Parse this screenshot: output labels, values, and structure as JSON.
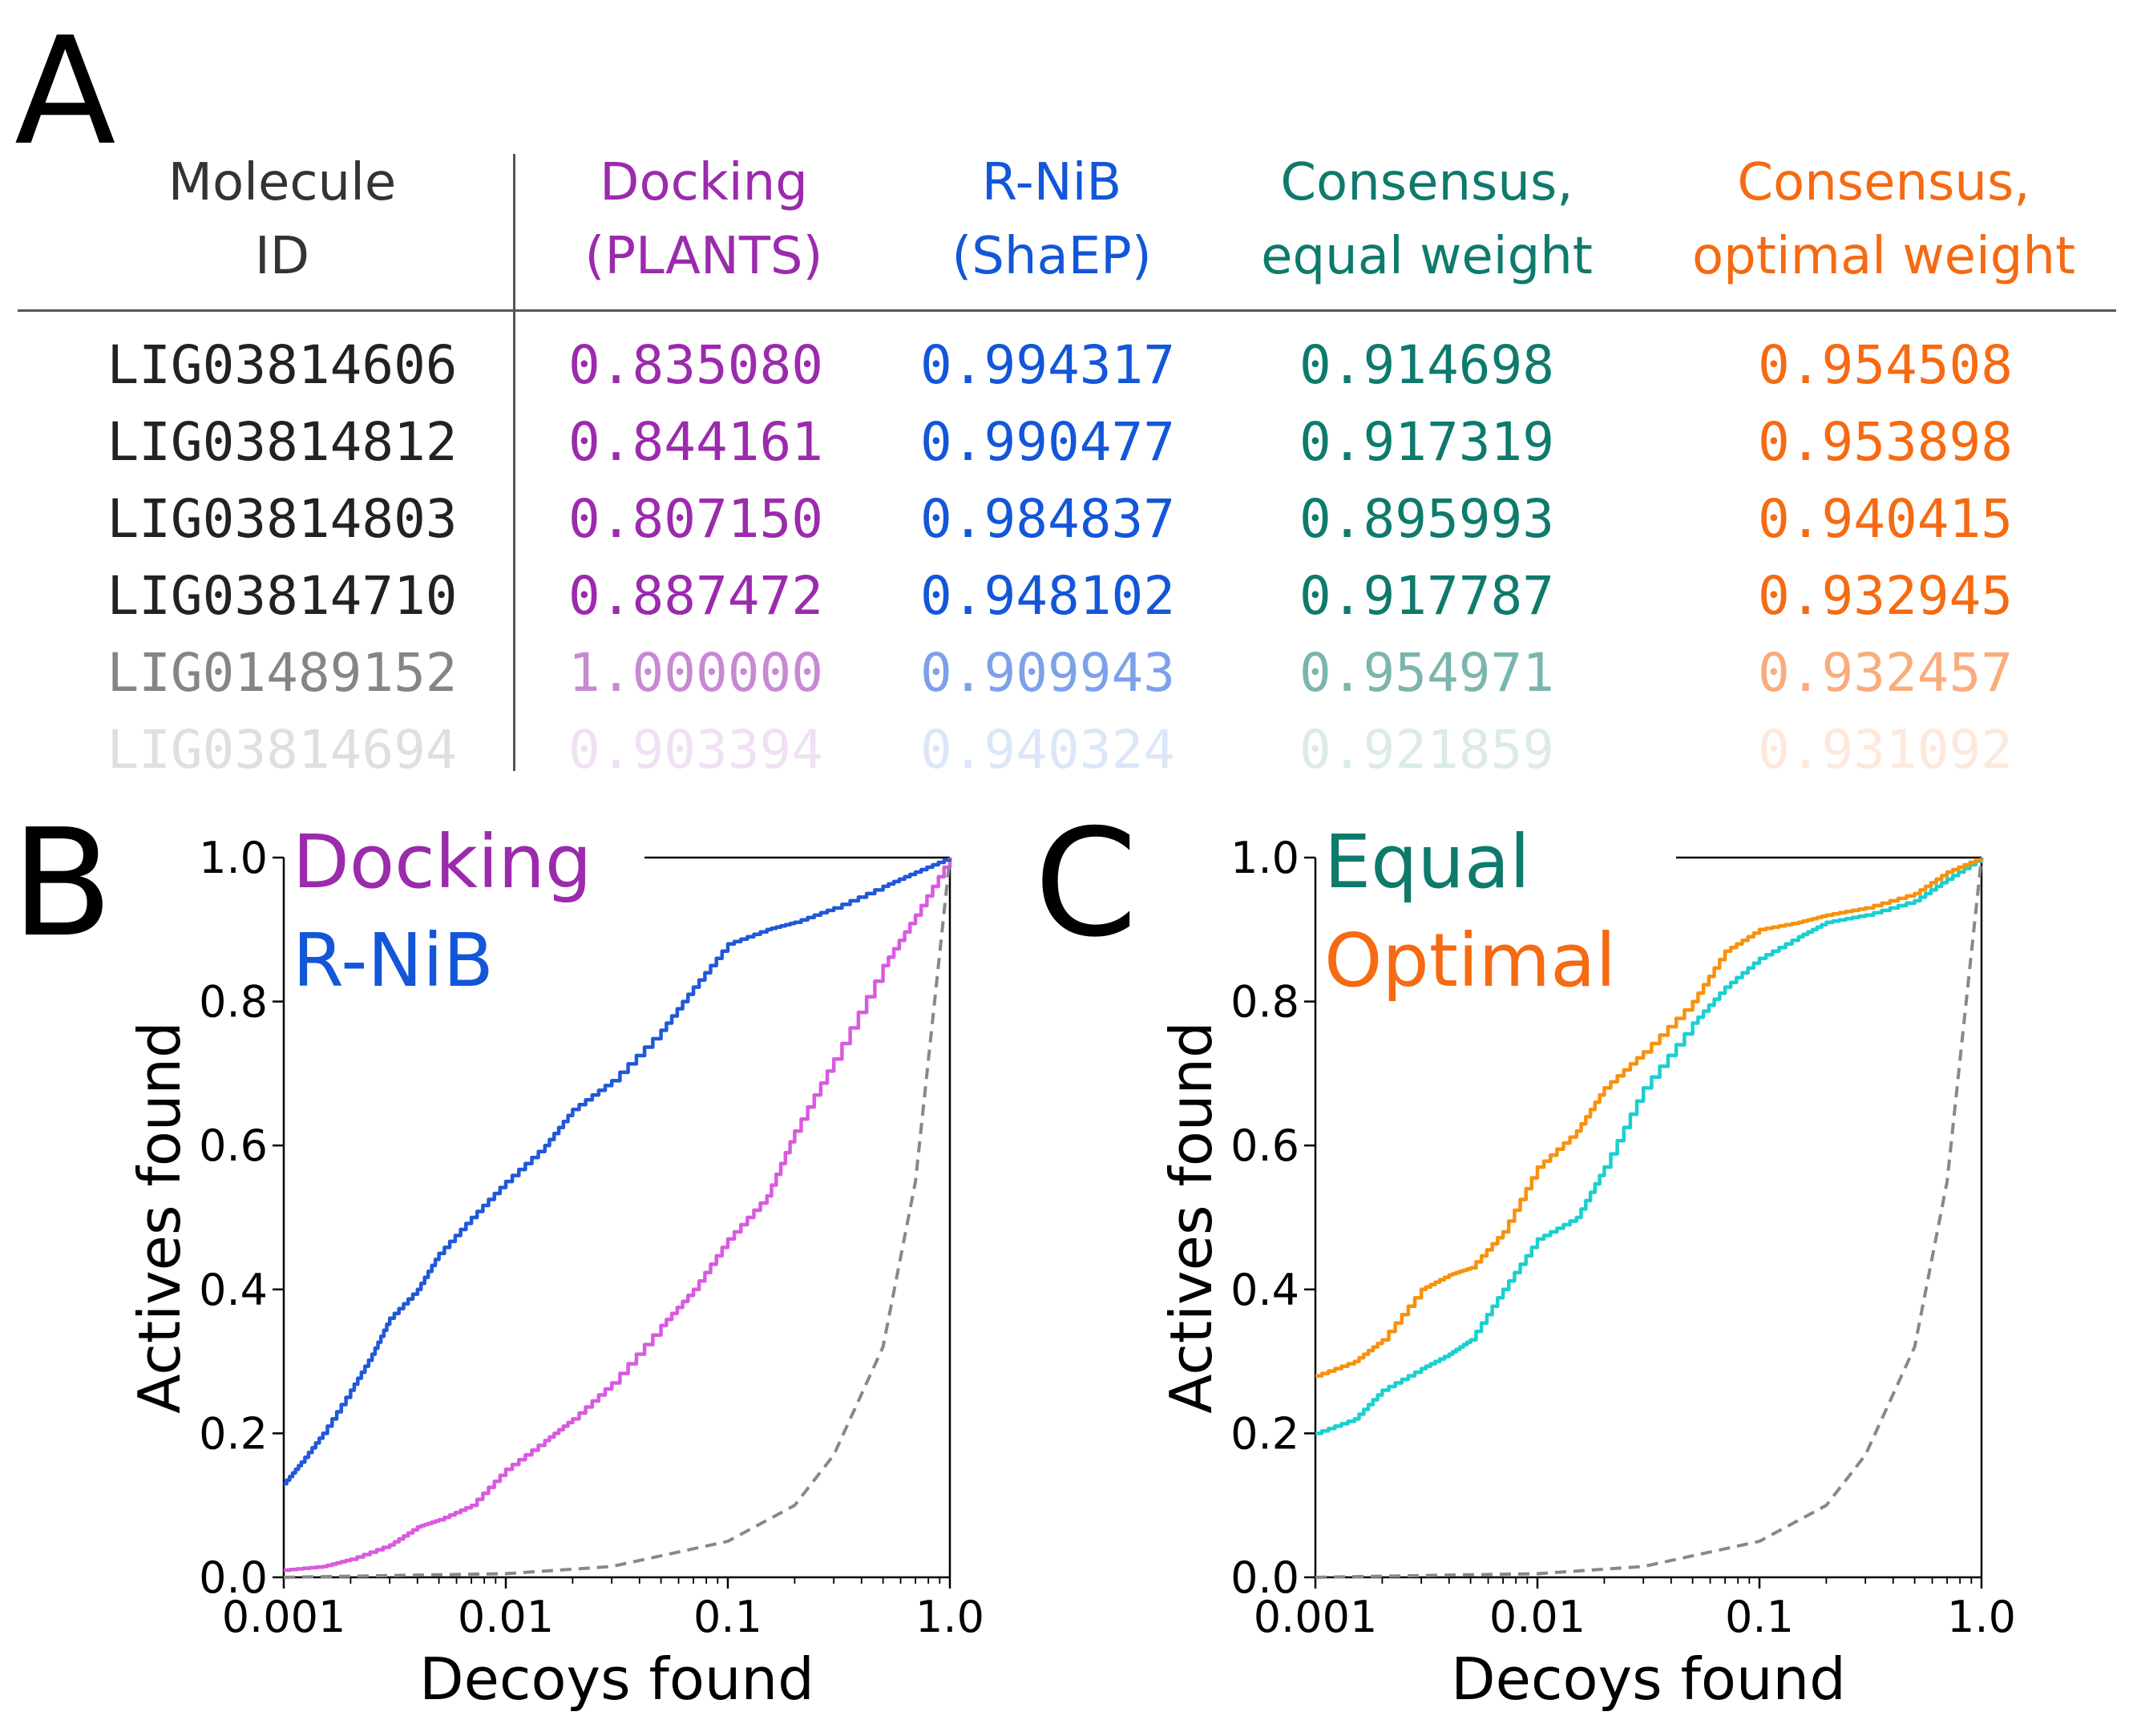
{
  "panels": {
    "a": "A",
    "b": "B",
    "c": "C"
  },
  "colors": {
    "docking": "#9b2aad",
    "rnib": "#1356d8",
    "equal": "#0e7a6c",
    "optimal": "#f56a12",
    "docking_line": "#d95adf",
    "rnib_line": "#2058d8",
    "equal_line": "#1ad0cf",
    "optimal_line": "#f7920f",
    "random_line": "#888888"
  },
  "table": {
    "headers": [
      {
        "key": "id",
        "line1": "Molecule",
        "line2": "ID"
      },
      {
        "key": "docking",
        "line1": "Docking",
        "line2": "(PLANTS)"
      },
      {
        "key": "rnib",
        "line1": "R-NiB",
        "line2": "(ShaEP)"
      },
      {
        "key": "equal",
        "line1": "Consensus,",
        "line2": "equal weight"
      },
      {
        "key": "optimal",
        "line1": "Consensus,",
        "line2": "optimal weight"
      }
    ],
    "rows": [
      {
        "id": "LIG03814606",
        "docking": "0.835080",
        "rnib": "0.994317",
        "equal": "0.914698",
        "optimal": "0.954508"
      },
      {
        "id": "LIG03814812",
        "docking": "0.844161",
        "rnib": "0.990477",
        "equal": "0.917319",
        "optimal": "0.953898"
      },
      {
        "id": "LIG03814803",
        "docking": "0.807150",
        "rnib": "0.984837",
        "equal": "0.895993",
        "optimal": "0.940415"
      },
      {
        "id": "LIG03814710",
        "docking": "0.887472",
        "rnib": "0.948102",
        "equal": "0.917787",
        "optimal": "0.932945"
      },
      {
        "id": "LIG01489152",
        "docking": "1.000000",
        "rnib": "0.909943",
        "equal": "0.954971",
        "optimal": "0.932457"
      },
      {
        "id": "LIG03814694",
        "docking": "0.903394",
        "rnib": "0.940324",
        "equal": "0.921859",
        "optimal": "0.931092"
      }
    ]
  },
  "chart_data": [
    {
      "panel": "B",
      "type": "line",
      "xlabel": "Decoys found",
      "ylabel": "Actives found",
      "xscale": "log",
      "xlim": [
        0.001,
        1.0
      ],
      "ylim": [
        0.0,
        1.0
      ],
      "xticks": [
        0.001,
        0.01,
        0.1,
        1.0
      ],
      "xtick_labels": [
        "0.001",
        "0.01",
        "0.1",
        "1.0"
      ],
      "yticks": [
        0.0,
        0.2,
        0.4,
        0.6,
        0.8,
        1.0
      ],
      "ytick_labels": [
        "0.0",
        "0.2",
        "0.4",
        "0.6",
        "0.8",
        "1.0"
      ],
      "legend": [
        "Docking",
        "R-NiB"
      ],
      "legend_placement": "top-left",
      "series": [
        {
          "name": "Docking",
          "color": "#d95adf",
          "x": [
            0.001,
            0.0015,
            0.002,
            0.003,
            0.004,
            0.005,
            0.007,
            0.01,
            0.015,
            0.02,
            0.03,
            0.05,
            0.07,
            0.1,
            0.15,
            0.2,
            0.3,
            0.5,
            0.7,
            1.0
          ],
          "y": [
            0.01,
            0.015,
            0.025,
            0.045,
            0.07,
            0.08,
            0.1,
            0.15,
            0.19,
            0.22,
            0.27,
            0.35,
            0.4,
            0.47,
            0.53,
            0.62,
            0.72,
            0.85,
            0.92,
            1.0
          ]
        },
        {
          "name": "R-NiB",
          "color": "#2058d8",
          "x": [
            0.001,
            0.0012,
            0.0015,
            0.002,
            0.0025,
            0.003,
            0.004,
            0.005,
            0.007,
            0.01,
            0.015,
            0.02,
            0.03,
            0.05,
            0.07,
            0.1,
            0.15,
            0.2,
            0.3,
            0.5,
            0.7,
            1.0
          ],
          "y": [
            0.13,
            0.16,
            0.2,
            0.26,
            0.31,
            0.36,
            0.4,
            0.45,
            0.5,
            0.55,
            0.6,
            0.65,
            0.69,
            0.76,
            0.82,
            0.88,
            0.9,
            0.91,
            0.93,
            0.96,
            0.98,
            1.0
          ]
        },
        {
          "name": "",
          "color": "#888888",
          "dashed": true,
          "function": "y=x^(1/1.4)^-? random baseline",
          "x": [
            0.001,
            0.01,
            0.03,
            0.1,
            0.2,
            0.3,
            0.5,
            0.7,
            1.0
          ],
          "y": [
            0.0,
            0.005,
            0.015,
            0.05,
            0.1,
            0.17,
            0.32,
            0.55,
            1.0
          ]
        }
      ]
    },
    {
      "panel": "C",
      "type": "line",
      "xlabel": "Decoys found",
      "ylabel": "Actives found",
      "xscale": "log",
      "xlim": [
        0.001,
        1.0
      ],
      "ylim": [
        0.0,
        1.0
      ],
      "xticks": [
        0.001,
        0.01,
        0.1,
        1.0
      ],
      "xtick_labels": [
        "0.001",
        "0.01",
        "0.1",
        "1.0"
      ],
      "yticks": [
        0.0,
        0.2,
        0.4,
        0.6,
        0.8,
        1.0
      ],
      "ytick_labels": [
        "0.0",
        "0.2",
        "0.4",
        "0.6",
        "0.8",
        "1.0"
      ],
      "legend": [
        "Equal",
        "Optimal"
      ],
      "legend_placement": "top-left",
      "series": [
        {
          "name": "Equal",
          "color": "#1ad0cf",
          "x": [
            0.001,
            0.0015,
            0.002,
            0.003,
            0.004,
            0.005,
            0.007,
            0.01,
            0.015,
            0.02,
            0.03,
            0.05,
            0.07,
            0.1,
            0.15,
            0.2,
            0.3,
            0.5,
            0.7,
            1.0
          ],
          "y": [
            0.2,
            0.22,
            0.26,
            0.29,
            0.31,
            0.33,
            0.4,
            0.47,
            0.5,
            0.57,
            0.68,
            0.77,
            0.82,
            0.86,
            0.89,
            0.91,
            0.92,
            0.94,
            0.97,
            1.0
          ]
        },
        {
          "name": "Optimal",
          "color": "#f7920f",
          "x": [
            0.001,
            0.0015,
            0.002,
            0.003,
            0.004,
            0.005,
            0.007,
            0.01,
            0.015,
            0.02,
            0.03,
            0.05,
            0.07,
            0.1,
            0.15,
            0.2,
            0.3,
            0.5,
            0.7,
            1.0
          ],
          "y": [
            0.28,
            0.3,
            0.33,
            0.4,
            0.42,
            0.43,
            0.48,
            0.57,
            0.62,
            0.68,
            0.73,
            0.8,
            0.87,
            0.9,
            0.91,
            0.92,
            0.93,
            0.95,
            0.98,
            1.0
          ]
        },
        {
          "name": "",
          "color": "#888888",
          "dashed": true,
          "x": [
            0.001,
            0.01,
            0.03,
            0.1,
            0.2,
            0.3,
            0.5,
            0.7,
            1.0
          ],
          "y": [
            0.0,
            0.005,
            0.015,
            0.05,
            0.1,
            0.17,
            0.32,
            0.55,
            1.0
          ]
        }
      ]
    }
  ]
}
